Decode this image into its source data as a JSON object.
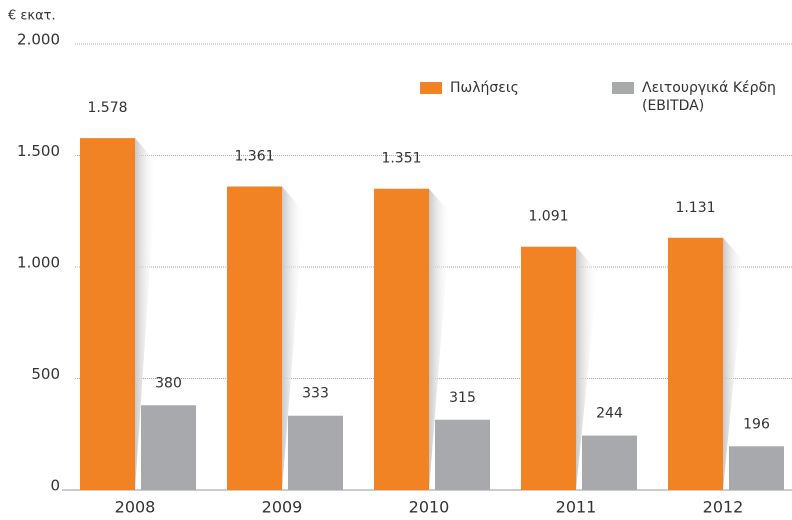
{
  "chart_data": {
    "type": "bar",
    "y_axis_label": "€ εκατ.",
    "categories": [
      "2008",
      "2009",
      "2010",
      "2011",
      "2012"
    ],
    "series": [
      {
        "name": "Πωλήσεις",
        "color": "#f28325",
        "values": [
          1578,
          1361,
          1351,
          1091,
          1131
        ],
        "value_labels": [
          "1.578",
          "1.361",
          "1.351",
          "1.091",
          "1.131"
        ]
      },
      {
        "name": "Λειτουργικά Κέρδη (EBITDA)",
        "color": "#a7a9ac",
        "values": [
          380,
          333,
          315,
          244,
          196
        ],
        "value_labels": [
          "380",
          "333",
          "315",
          "244",
          "196"
        ]
      }
    ],
    "ylim": [
      0,
      2000
    ],
    "yticks": [
      {
        "value": 0,
        "label": "0"
      },
      {
        "value": 500,
        "label": "500"
      },
      {
        "value": 1000,
        "label": "1.000"
      },
      {
        "value": 1500,
        "label": "1.500"
      },
      {
        "value": 2000,
        "label": "2.000"
      }
    ],
    "grid": true,
    "legend": "top-right"
  }
}
